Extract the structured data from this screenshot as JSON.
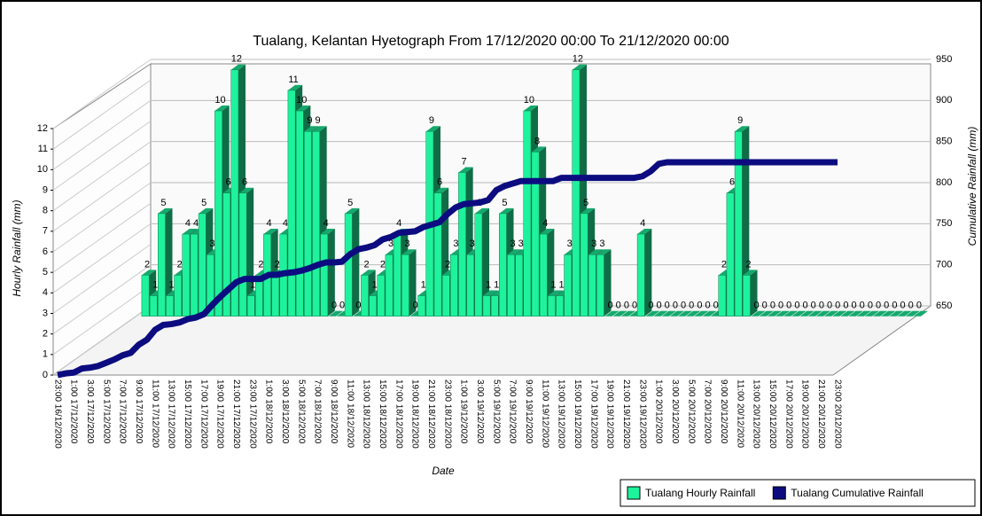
{
  "chart_data": {
    "type": "bar",
    "title": "Tualang, Kelantan Hyetograph From 17/12/2020 00:00 To 21/12/2020 00:00",
    "ylabel": "Hourly Rainfall (mm)",
    "y2label": "Cumulative Rainfall (mm)",
    "xlabel": "Date",
    "categories": [
      "23:00 16/12/2020",
      null,
      "1:00 17/12/2020",
      null,
      "3:00 17/12/2020",
      null,
      "5:00 17/12/2020",
      null,
      "7:00 17/12/2020",
      null,
      "9:00 17/12/2020",
      null,
      "11:00 17/12/2020",
      null,
      "13:00 17/12/2020",
      null,
      "15:00 17/12/2020",
      null,
      "17:00 17/12/2020",
      null,
      "19:00 17/12/2020",
      null,
      "21:00 17/12/2020",
      null,
      "23:00 17/12/2020",
      null,
      "1:00 18/12/2020",
      null,
      "3:00 18/12/2020",
      null,
      "5:00 18/12/2020",
      null,
      "7:00 18/12/2020",
      null,
      "9:00 18/12/2020",
      null,
      "11:00 18/12/2020",
      null,
      "13:00 18/12/2020",
      null,
      "15:00 18/12/2020",
      null,
      "17:00 18/12/2020",
      null,
      "19:00 18/12/2020",
      null,
      "21:00 18/12/2020",
      null,
      "23:00 18/12/2020",
      null,
      "1:00 19/12/2020",
      null,
      "3:00 19/12/2020",
      null,
      "5:00 19/12/2020",
      null,
      "7:00 19/12/2020",
      null,
      "9:00 19/12/2020",
      null,
      "11:00 19/12/2020",
      null,
      "13:00 19/12/2020",
      null,
      "15:00 19/12/2020",
      null,
      "17:00 19/12/2020",
      null,
      "19:00 19/12/2020",
      null,
      "21:00 19/12/2020",
      null,
      "23:00 19/12/2020",
      null,
      "1:00 20/12/2020",
      null,
      "3:00 20/12/2020",
      null,
      "5:00 20/12/2020",
      null,
      "7:00 20/12/2020",
      null,
      "9:00 20/12/2020",
      null,
      "11:00 20/12/2020",
      null,
      "13:00 20/12/2020",
      null,
      "15:00 20/12/2020",
      null,
      "17:00 20/12/2020",
      null,
      "19:00 20/12/2020",
      null,
      "21:00 20/12/2020",
      null,
      "23:00 20/12/2020"
    ],
    "series": [
      {
        "name": "Tualang Hourly Rainfall",
        "color": "#1ef29c",
        "values": [
          null,
          2,
          1,
          5,
          1,
          2,
          4,
          4,
          5,
          3,
          10,
          6,
          12,
          6,
          1,
          2,
          4,
          2,
          4,
          11,
          10,
          9,
          9,
          4,
          0,
          0,
          5,
          0,
          2,
          1,
          2,
          3,
          4,
          3,
          0,
          1,
          9,
          6,
          2,
          3,
          7,
          3,
          5,
          1,
          1,
          5,
          3,
          3,
          10,
          8,
          4,
          1,
          1,
          3,
          12,
          5,
          3,
          3,
          0,
          0,
          0,
          0,
          4,
          0,
          0,
          0,
          0,
          0,
          0,
          0,
          0,
          0,
          2,
          6,
          9,
          2,
          0,
          0,
          0,
          0,
          0,
          0,
          0,
          0,
          0,
          0,
          0,
          0,
          0,
          0,
          0,
          0,
          0,
          0,
          0,
          0,
          0
        ]
      },
      {
        "name": "Tualang Cumulative Rainfall",
        "color": "#0c0c80",
        "axis": "y2",
        "values": [
          650,
          652,
          653,
          658,
          659,
          661,
          665,
          669,
          674,
          677,
          687,
          693,
          705,
          711,
          712,
          714,
          718,
          720,
          724,
          735,
          745,
          754,
          763,
          767,
          767,
          767,
          772,
          772,
          774,
          775,
          777,
          780,
          784,
          787,
          787,
          788,
          797,
          803,
          805,
          808,
          815,
          818,
          823,
          824,
          825,
          830,
          833,
          836,
          846,
          854,
          858,
          859,
          860,
          863,
          875,
          880,
          883,
          886,
          886,
          886,
          886,
          886,
          890,
          890,
          890,
          890,
          890,
          890,
          890,
          890,
          890,
          890,
          892,
          898,
          907,
          909,
          909,
          909,
          909,
          909,
          909,
          909,
          909,
          909,
          909,
          909,
          909,
          909,
          909,
          909,
          909,
          909,
          909,
          909,
          909,
          909,
          909
        ]
      }
    ],
    "ylim": [
      0,
      12
    ],
    "yticks": [
      0,
      1,
      2,
      3,
      4,
      5,
      6,
      7,
      8,
      9,
      10,
      11,
      12
    ],
    "y2lim": [
      650,
      950
    ],
    "y2ticks": [
      650,
      700,
      750,
      800,
      850,
      900,
      950
    ],
    "grid": true,
    "legend": "bottom-right"
  }
}
